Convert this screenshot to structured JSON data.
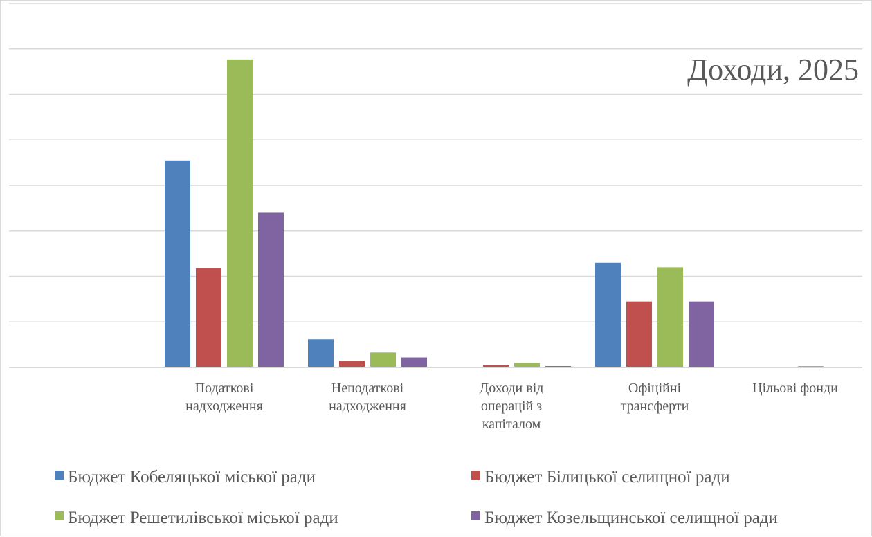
{
  "chart_data": {
    "type": "bar",
    "title": "Доходи, 2025",
    "xlabel": "",
    "ylabel": "",
    "grid": true,
    "ylim": [
      0,
      8
    ],
    "y_tick_step": 1,
    "categories": [
      [
        "Податкові",
        "надходження"
      ],
      [
        "Неподаткові",
        "надходження"
      ],
      [
        "Доходи від",
        "операцій з",
        "капіталом"
      ],
      [
        "Офіційні",
        "трансферти"
      ],
      [
        "Цільові фонди"
      ]
    ],
    "series": [
      {
        "name": "Бюджет Кобеляцької міської  ради",
        "color": "#4f81bd",
        "values": [
          4.55,
          0.62,
          0.01,
          2.3,
          0.0
        ]
      },
      {
        "name": "Бюджет Білицької селищної   ради",
        "color": "#c0504d",
        "values": [
          2.18,
          0.15,
          0.05,
          1.45,
          0.0
        ]
      },
      {
        "name": "Бюджет Решетилівської  міської  ради",
        "color": "#9bbb59",
        "values": [
          6.77,
          0.33,
          0.1,
          2.2,
          0.03
        ]
      },
      {
        "name": "Бюджет Козельщинської селищної   ради",
        "color": "#8064a2",
        "values": [
          3.4,
          0.22,
          0.03,
          1.45,
          0.0
        ]
      }
    ],
    "legend_position": "bottom"
  }
}
